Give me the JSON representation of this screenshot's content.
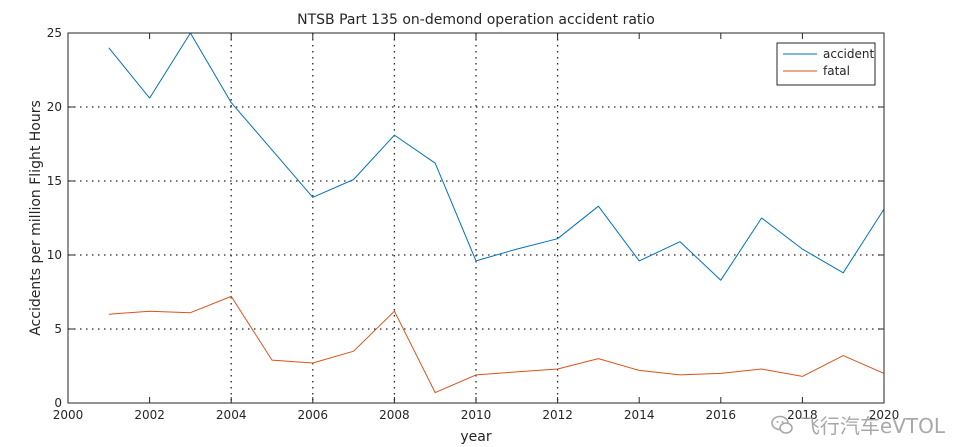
{
  "chart_data": {
    "type": "line",
    "title": "NTSB Part 135 on-demond operation accident ratio",
    "xlabel": "year",
    "ylabel": "Accidents per million Flight Hours",
    "xlim": [
      2000,
      2020
    ],
    "ylim": [
      0,
      25
    ],
    "xticks": [
      2000,
      2002,
      2004,
      2006,
      2008,
      2010,
      2012,
      2014,
      2016,
      2018,
      2020
    ],
    "yticks": [
      0,
      5,
      10,
      15,
      20,
      25
    ],
    "grid": "dotted, y at 5/10/15/20; x at 2004/2006/2008/2010/2012",
    "legend_position": "top-right",
    "x": [
      2001,
      2002,
      2003,
      2004,
      2005,
      2006,
      2007,
      2008,
      2009,
      2010,
      2011,
      2012,
      2013,
      2014,
      2015,
      2016,
      2017,
      2018,
      2019,
      2020
    ],
    "series": [
      {
        "name": "accident",
        "color": "#0072bd",
        "values": [
          24.0,
          20.6,
          25.0,
          20.3,
          17.1,
          13.9,
          15.1,
          18.1,
          16.2,
          9.6,
          10.4,
          11.1,
          13.3,
          9.6,
          10.9,
          8.3,
          12.5,
          10.4,
          8.8,
          13.1
        ]
      },
      {
        "name": "fatal",
        "color": "#d95319",
        "values": [
          6.0,
          6.2,
          6.1,
          7.2,
          2.9,
          2.7,
          3.5,
          6.2,
          0.7,
          1.9,
          2.1,
          2.3,
          3.0,
          2.2,
          1.9,
          2.0,
          2.3,
          1.8,
          3.2,
          2.0
        ]
      }
    ]
  },
  "watermark": {
    "text": "飞行汽车eVTOL",
    "icon": "wechat-icon"
  }
}
